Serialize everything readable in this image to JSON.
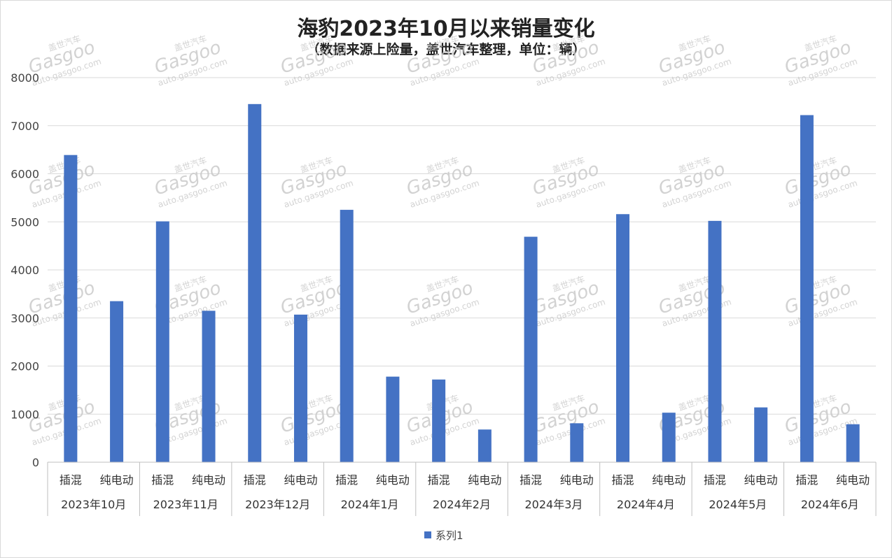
{
  "chart_data": {
    "type": "bar",
    "title": "海豹2023年10月以来销量变化",
    "subtitle": "（数据来源上险量，盖世汽车整理，单位：辆）",
    "groups": [
      "2023年10月",
      "2023年11月",
      "2023年12月",
      "2024年1月",
      "2024年2月",
      "2024年3月",
      "2024年4月",
      "2024年5月",
      "2024年6月"
    ],
    "categories": [
      "插混",
      "纯电动"
    ],
    "series": [
      {
        "name": "系列1",
        "color": "#4472C4",
        "values": [
          [
            6390,
            3350
          ],
          [
            5010,
            3150
          ],
          [
            7450,
            3070
          ],
          [
            5250,
            1780
          ],
          [
            1720,
            680
          ],
          [
            4690,
            810
          ],
          [
            5160,
            1030
          ],
          [
            5020,
            1140
          ],
          [
            7220,
            790
          ]
        ]
      }
    ],
    "yticks": [
      0,
      1000,
      2000,
      3000,
      4000,
      5000,
      6000,
      7000,
      8000
    ],
    "ylim": [
      0,
      8000
    ],
    "grid": true,
    "legend_position": "bottom"
  },
  "watermark": {
    "brand_cn": "盖世汽车",
    "brand_en": "Gasgoo",
    "url": "auto.gasgoo.com"
  }
}
